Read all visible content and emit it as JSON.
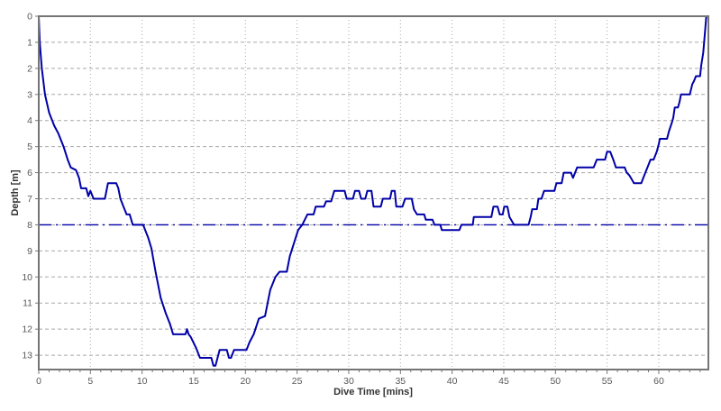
{
  "chart_data": {
    "type": "line",
    "title": "",
    "xlabel": "Dive Time [mins]",
    "ylabel": "Depth [m]",
    "xlim": [
      0,
      64.8
    ],
    "ylim": [
      0,
      13.55
    ],
    "y_axis_direction": "inverted-depth-down",
    "x_ticks": [
      0,
      5,
      10,
      15,
      20,
      25,
      30,
      35,
      40,
      45,
      50,
      55,
      60
    ],
    "x_minor_tick_step": 1,
    "y_ticks": [
      0,
      1,
      2,
      3,
      4,
      5,
      6,
      7,
      8,
      9,
      10,
      11,
      12,
      13
    ],
    "grid": {
      "horizontal_style": "dashed",
      "vertical_style": "dotted",
      "color": "#a8a8a8"
    },
    "legend": "none",
    "reference_line": {
      "name": "8m-depth-marker",
      "depth": 8,
      "style": "dash-dot",
      "color": "#0000a8"
    },
    "series": [
      {
        "name": "dive-depth-profile",
        "color": "#0000a8",
        "points": [
          [
            0,
            0
          ],
          [
            0.1,
            1.0
          ],
          [
            0.3,
            2.0
          ],
          [
            0.6,
            3.0
          ],
          [
            1.0,
            3.7
          ],
          [
            1.5,
            4.2
          ],
          [
            1.9,
            4.5
          ],
          [
            2.4,
            5.0
          ],
          [
            2.8,
            5.5
          ],
          [
            3.1,
            5.8
          ],
          [
            3.6,
            5.9
          ],
          [
            3.9,
            6.2
          ],
          [
            4.1,
            6.6
          ],
          [
            4.6,
            6.6
          ],
          [
            4.8,
            6.9
          ],
          [
            5.0,
            6.7
          ],
          [
            5.3,
            7.0
          ],
          [
            6.4,
            7.0
          ],
          [
            6.7,
            6.4
          ],
          [
            7.5,
            6.4
          ],
          [
            7.7,
            6.6
          ],
          [
            7.9,
            7.0
          ],
          [
            8.2,
            7.3
          ],
          [
            8.5,
            7.6
          ],
          [
            8.8,
            7.6
          ],
          [
            9.1,
            8.0
          ],
          [
            10.1,
            8.0
          ],
          [
            10.3,
            8.2
          ],
          [
            10.6,
            8.5
          ],
          [
            10.9,
            8.9
          ],
          [
            11.3,
            9.8
          ],
          [
            11.8,
            10.8
          ],
          [
            12.3,
            11.4
          ],
          [
            12.7,
            11.8
          ],
          [
            13.0,
            12.2
          ],
          [
            14.2,
            12.2
          ],
          [
            14.35,
            12.0
          ],
          [
            14.5,
            12.2
          ],
          [
            14.7,
            12.3
          ],
          [
            15.2,
            12.7
          ],
          [
            15.6,
            13.1
          ],
          [
            16.7,
            13.1
          ],
          [
            16.9,
            13.4
          ],
          [
            17.1,
            13.4
          ],
          [
            17.3,
            13.1
          ],
          [
            17.5,
            12.8
          ],
          [
            18.2,
            12.8
          ],
          [
            18.4,
            13.1
          ],
          [
            18.6,
            13.1
          ],
          [
            18.9,
            12.8
          ],
          [
            20.1,
            12.8
          ],
          [
            20.4,
            12.5
          ],
          [
            20.8,
            12.2
          ],
          [
            21.3,
            11.6
          ],
          [
            21.9,
            11.5
          ],
          [
            22.4,
            10.5
          ],
          [
            22.9,
            10.0
          ],
          [
            23.3,
            9.8
          ],
          [
            24.0,
            9.8
          ],
          [
            24.3,
            9.2
          ],
          [
            24.7,
            8.7
          ],
          [
            25.1,
            8.2
          ],
          [
            25.5,
            8.0
          ],
          [
            26.0,
            7.6
          ],
          [
            26.6,
            7.6
          ],
          [
            26.8,
            7.3
          ],
          [
            27.6,
            7.3
          ],
          [
            27.8,
            7.1
          ],
          [
            28.3,
            7.1
          ],
          [
            28.6,
            6.7
          ],
          [
            29.6,
            6.7
          ],
          [
            29.8,
            7.0
          ],
          [
            30.4,
            7.0
          ],
          [
            30.6,
            6.7
          ],
          [
            31.0,
            6.7
          ],
          [
            31.2,
            7.0
          ],
          [
            31.6,
            7.0
          ],
          [
            31.8,
            6.7
          ],
          [
            32.2,
            6.7
          ],
          [
            32.4,
            7.3
          ],
          [
            33.1,
            7.3
          ],
          [
            33.3,
            7.0
          ],
          [
            34.0,
            7.0
          ],
          [
            34.15,
            6.7
          ],
          [
            34.45,
            6.7
          ],
          [
            34.6,
            7.3
          ],
          [
            35.2,
            7.3
          ],
          [
            35.45,
            7.0
          ],
          [
            36.1,
            7.0
          ],
          [
            36.3,
            7.4
          ],
          [
            36.6,
            7.6
          ],
          [
            37.3,
            7.6
          ],
          [
            37.45,
            7.8
          ],
          [
            38.1,
            7.8
          ],
          [
            38.3,
            8.0
          ],
          [
            38.85,
            8.0
          ],
          [
            39.0,
            8.2
          ],
          [
            40.7,
            8.2
          ],
          [
            40.9,
            8.0
          ],
          [
            42.0,
            8.0
          ],
          [
            42.1,
            7.7
          ],
          [
            43.8,
            7.7
          ],
          [
            44.0,
            7.3
          ],
          [
            44.4,
            7.3
          ],
          [
            44.6,
            7.6
          ],
          [
            44.9,
            7.6
          ],
          [
            45.05,
            7.3
          ],
          [
            45.35,
            7.3
          ],
          [
            45.55,
            7.7
          ],
          [
            46.0,
            8.0
          ],
          [
            47.4,
            8.0
          ],
          [
            47.6,
            7.7
          ],
          [
            47.75,
            7.4
          ],
          [
            48.2,
            7.4
          ],
          [
            48.35,
            7.0
          ],
          [
            48.65,
            7.0
          ],
          [
            48.9,
            6.7
          ],
          [
            49.3,
            6.7
          ],
          [
            49.9,
            6.7
          ],
          [
            50.1,
            6.4
          ],
          [
            50.6,
            6.4
          ],
          [
            50.8,
            6.0
          ],
          [
            51.5,
            6.0
          ],
          [
            51.7,
            6.2
          ],
          [
            51.9,
            6.0
          ],
          [
            52.1,
            5.8
          ],
          [
            53.7,
            5.8
          ],
          [
            54.0,
            5.5
          ],
          [
            54.8,
            5.5
          ],
          [
            55.0,
            5.2
          ],
          [
            55.3,
            5.2
          ],
          [
            55.6,
            5.5
          ],
          [
            55.85,
            5.8
          ],
          [
            56.7,
            5.8
          ],
          [
            56.9,
            6.0
          ],
          [
            57.15,
            6.1
          ],
          [
            57.45,
            6.3
          ],
          [
            57.6,
            6.4
          ],
          [
            58.3,
            6.4
          ],
          [
            58.6,
            6.1
          ],
          [
            58.9,
            5.8
          ],
          [
            59.2,
            5.5
          ],
          [
            59.5,
            5.5
          ],
          [
            59.8,
            5.2
          ],
          [
            60.0,
            4.9
          ],
          [
            60.1,
            4.7
          ],
          [
            60.8,
            4.7
          ],
          [
            61.0,
            4.4
          ],
          [
            61.25,
            4.1
          ],
          [
            61.4,
            3.9
          ],
          [
            61.55,
            3.5
          ],
          [
            61.85,
            3.5
          ],
          [
            62.0,
            3.3
          ],
          [
            62.15,
            3.0
          ],
          [
            63.0,
            3.0
          ],
          [
            63.25,
            2.6
          ],
          [
            63.4,
            2.5
          ],
          [
            63.6,
            2.3
          ],
          [
            64.0,
            2.3
          ],
          [
            64.1,
            1.9
          ],
          [
            64.3,
            1.4
          ],
          [
            64.45,
            0.7
          ],
          [
            64.6,
            0
          ]
        ]
      }
    ],
    "colors": {
      "plot_background": "#ffffff",
      "border": "#757575",
      "tick_label": "#595959",
      "axis_title": "#333333",
      "profile_line": "#0000a8",
      "grid_line": "#a8a8a8"
    }
  }
}
